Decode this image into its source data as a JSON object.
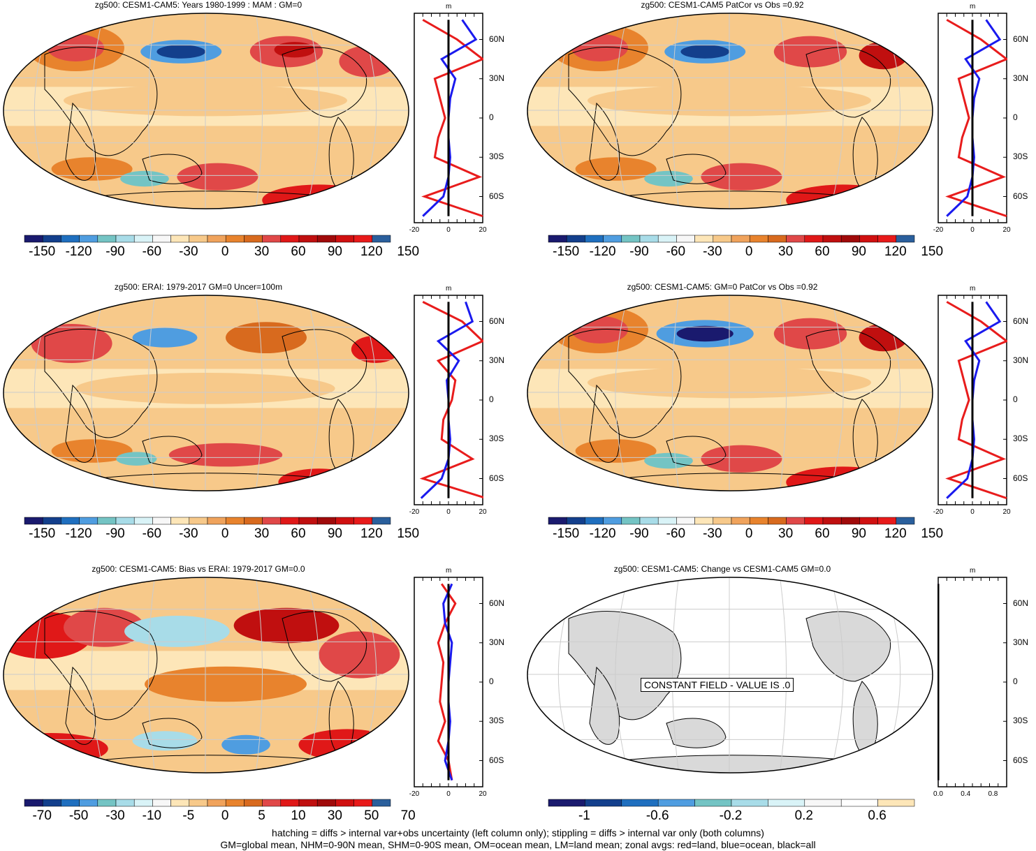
{
  "figure": {
    "footer_line1": "hatching = diffs > internal var+obs uncertainty (left column only); stippling = diffs > internal var only (both columns)",
    "footer_line2": "GM=global mean, NHM=0-90N mean, SHM=0-90S mean, OM=ocean mean, LM=land mean; zonal avgs: red=land, blue=ocean, black=all"
  },
  "palette": {
    "main": [
      "#1a1a6e",
      "#133f8c",
      "#1f6fbf",
      "#4f9de0",
      "#74c4c4",
      "#a8dce8",
      "#d9f3f7",
      "#f7f7f7",
      "#fde6b8",
      "#f7c98a",
      "#f0a35c",
      "#e8832d",
      "#d86a1e",
      "#e04848",
      "#e01818",
      "#c00f0f",
      "#a00a0a",
      "#d01010",
      "#e81a1a",
      "#2a5f9c"
    ],
    "change": [
      "#1a1a6e",
      "#133f8c",
      "#1f6fbf",
      "#4f9de0",
      "#74c4c4",
      "#a8dce8",
      "#d9f3f7",
      "#f7f7f7",
      "#ffffff",
      "#fde6b8"
    ],
    "land": "#d9d9d9",
    "zonal_land": "#e81c1c",
    "zonal_ocean": "#1a1aee",
    "zonal_all": "#000000"
  },
  "panels": [
    {
      "title": "zg500: CESM1-CAM5: Years 1980-1999 : MAM : GM=0",
      "colorbar_labels": [
        "-150",
        "-120",
        "-90",
        "-60",
        "-30",
        "0",
        "30",
        "60",
        "90",
        "120",
        "150"
      ],
      "zonal_unit": "m",
      "zonal_xticks": [
        "-20",
        "0",
        "20"
      ],
      "lat_labels": [
        "60N",
        "30N",
        "0",
        "30S",
        "60S"
      ]
    },
    {
      "title": "zg500: CESM1-CAM5 PatCor vs Obs =0.92",
      "colorbar_labels": [
        "-150",
        "-120",
        "-90",
        "-60",
        "-30",
        "0",
        "30",
        "60",
        "90",
        "120",
        "150"
      ],
      "zonal_unit": "m",
      "zonal_xticks": [
        "-20",
        "0",
        "20"
      ],
      "lat_labels": [
        "60N",
        "30N",
        "0",
        "30S",
        "60S"
      ]
    },
    {
      "title": "zg500: ERAI: 1979-2017 GM=0 Uncer=100m",
      "colorbar_labels": [
        "-150",
        "-120",
        "-90",
        "-60",
        "-30",
        "0",
        "30",
        "60",
        "90",
        "120",
        "150"
      ],
      "zonal_unit": "m",
      "zonal_xticks": [
        "-20",
        "0",
        "20"
      ],
      "lat_labels": [
        "60N",
        "30N",
        "0",
        "30S",
        "60S"
      ]
    },
    {
      "title": "zg500: CESM1-CAM5: GM=0 PatCor vs Obs =0.92",
      "colorbar_labels": [
        "-150",
        "-120",
        "-90",
        "-60",
        "-30",
        "0",
        "30",
        "60",
        "90",
        "120",
        "150"
      ],
      "zonal_unit": "m",
      "zonal_xticks": [
        "-20",
        "0",
        "20"
      ],
      "lat_labels": [
        "60N",
        "30N",
        "0",
        "30S",
        "60S"
      ]
    },
    {
      "title": "zg500: CESM1-CAM5: Bias vs ERAI: 1979-2017 GM=0.0",
      "colorbar_labels": [
        "-70",
        "-50",
        "-30",
        "-10",
        "-5",
        "0",
        "5",
        "10",
        "30",
        "50",
        "70"
      ],
      "zonal_unit": "m",
      "zonal_xticks": [
        "-20",
        "0",
        "20"
      ],
      "lat_labels": [
        "60N",
        "30N",
        "0",
        "30S",
        "60S"
      ]
    },
    {
      "title": "zg500: CESM1-CAM5: Change vs CESM1-CAM5 GM=0.0",
      "colorbar_labels": [
        "-1",
        "-0.6",
        "-0.2",
        "0.2",
        "0.6"
      ],
      "constant_field": "CONSTANT FIELD - VALUE IS .0",
      "zonal_unit": "m",
      "zonal_xticks": [
        "0.0",
        "0.4",
        "0.8"
      ],
      "lat_labels": [
        "60N",
        "30N",
        "0",
        "30S",
        "60S"
      ]
    }
  ],
  "chart_data": [
    {
      "type": "heatmap",
      "title": "zg500: CESM1-CAM5: Years 1980-1999 : MAM : GM=0",
      "colorbar_ticks": [
        -150,
        -120,
        -90,
        -60,
        -30,
        0,
        30,
        60,
        90,
        120,
        150
      ],
      "zonal_profile": {
        "xlim": [
          -20,
          20
        ],
        "xlabel": "m",
        "lat": [
          75,
          60,
          45,
          30,
          15,
          0,
          -15,
          -30,
          -45,
          -60,
          -75
        ],
        "land": [
          -15,
          5,
          20,
          -8,
          -5,
          -2,
          -6,
          -8,
          18,
          -14,
          20
        ],
        "ocean": [
          8,
          16,
          -4,
          4,
          1,
          0,
          0,
          1,
          0,
          -3,
          -15
        ],
        "all": [
          0,
          0,
          0,
          0,
          0,
          0,
          0,
          0,
          0,
          0,
          0
        ]
      }
    },
    {
      "type": "heatmap",
      "title": "zg500: CESM1-CAM5 PatCor vs Obs =0.92",
      "colorbar_ticks": [
        -150,
        -120,
        -90,
        -60,
        -30,
        0,
        30,
        60,
        90,
        120,
        150
      ],
      "zonal_profile": {
        "xlim": [
          -20,
          20
        ],
        "xlabel": "m",
        "lat": [
          75,
          60,
          45,
          30,
          15,
          0,
          -15,
          -30,
          -45,
          -60,
          -75
        ],
        "land": [
          -15,
          5,
          20,
          -8,
          -5,
          -2,
          -6,
          -8,
          18,
          -14,
          20
        ],
        "ocean": [
          8,
          16,
          -4,
          4,
          1,
          0,
          0,
          1,
          0,
          -3,
          -15
        ],
        "all": [
          0,
          0,
          0,
          0,
          0,
          0,
          0,
          0,
          0,
          0,
          0
        ]
      }
    },
    {
      "type": "heatmap",
      "title": "zg500: ERAI: 1979-2017 GM=0 Uncer=100m",
      "colorbar_ticks": [
        -150,
        -120,
        -90,
        -60,
        -30,
        0,
        30,
        60,
        90,
        120,
        150
      ],
      "zonal_profile": {
        "xlim": [
          -20,
          20
        ],
        "xlabel": "m",
        "lat": [
          75,
          60,
          45,
          30,
          15,
          0,
          -15,
          -30,
          -45,
          -60,
          -75
        ],
        "land": [
          -15,
          8,
          20,
          -6,
          4,
          2,
          -3,
          -4,
          14,
          -15,
          22
        ],
        "ocean": [
          10,
          14,
          -6,
          6,
          -1,
          0,
          0,
          1,
          0,
          -4,
          -16
        ],
        "all": [
          0,
          0,
          0,
          0,
          0,
          0,
          0,
          0,
          0,
          0,
          0
        ]
      }
    },
    {
      "type": "heatmap",
      "title": "zg500: CESM1-CAM5: GM=0 PatCor vs Obs =0.92",
      "colorbar_ticks": [
        -150,
        -120,
        -90,
        -60,
        -30,
        0,
        30,
        60,
        90,
        120,
        150
      ],
      "zonal_profile": {
        "xlim": [
          -20,
          20
        ],
        "xlabel": "m",
        "lat": [
          75,
          60,
          45,
          30,
          15,
          0,
          -15,
          -30,
          -45,
          -60,
          -75
        ],
        "land": [
          -15,
          5,
          20,
          -8,
          -5,
          -2,
          -6,
          -8,
          18,
          -14,
          20
        ],
        "ocean": [
          8,
          16,
          -4,
          4,
          1,
          0,
          0,
          1,
          0,
          -3,
          -15
        ],
        "all": [
          0,
          0,
          0,
          0,
          0,
          0,
          0,
          0,
          0,
          0,
          0
        ]
      }
    },
    {
      "type": "heatmap",
      "title": "zg500: CESM1-CAM5: Bias vs ERAI: 1979-2017 GM=0.0",
      "colorbar_ticks": [
        -70,
        -50,
        -30,
        -10,
        -5,
        0,
        5,
        10,
        30,
        50,
        70
      ],
      "zonal_profile": {
        "xlim": [
          -20,
          20
        ],
        "xlabel": "m",
        "lat": [
          75,
          60,
          45,
          30,
          15,
          0,
          -15,
          -30,
          -45,
          -60,
          -75
        ],
        "land": [
          -4,
          4,
          -2,
          -6,
          -3,
          -4,
          -5,
          -2,
          -6,
          0,
          2
        ],
        "ocean": [
          2,
          -3,
          -2,
          2,
          1,
          0,
          0,
          1,
          0,
          -2,
          2
        ],
        "all": [
          0,
          0,
          0,
          0,
          0,
          0,
          0,
          0,
          0,
          0,
          0
        ]
      }
    },
    {
      "type": "heatmap",
      "title": "zg500: CESM1-CAM5: Change vs CESM1-CAM5 GM=0.0",
      "colorbar_ticks": [
        -1,
        -0.6,
        -0.2,
        0.2,
        0.6
      ],
      "zonal_profile": {
        "xlim": [
          0,
          1
        ],
        "xlabel": "m",
        "lat": [
          75,
          60,
          45,
          30,
          15,
          0,
          -15,
          -30,
          -45,
          -60,
          -75
        ],
        "land": [
          0,
          0,
          0,
          0,
          0,
          0,
          0,
          0,
          0,
          0,
          0
        ],
        "ocean": [
          0,
          0,
          0,
          0,
          0,
          0,
          0,
          0,
          0,
          0,
          0
        ],
        "all": [
          0,
          0,
          0,
          0,
          0,
          0,
          0,
          0,
          0,
          0,
          0
        ]
      }
    }
  ]
}
